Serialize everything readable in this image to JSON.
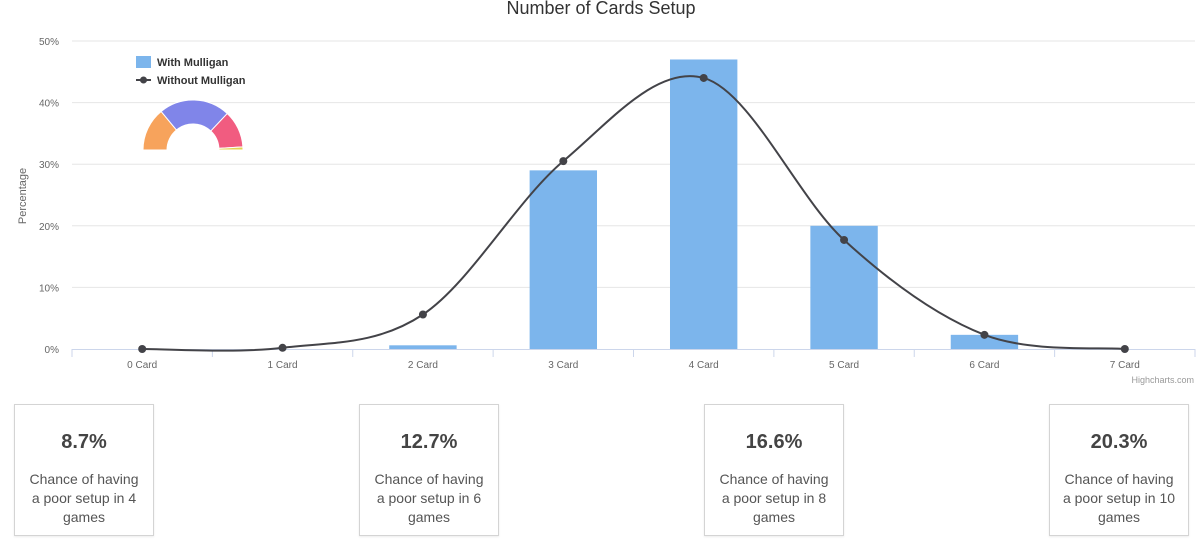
{
  "chart_data": {
    "type": "bar",
    "title": "Number of Cards Setup",
    "ylabel": "Percentage",
    "xlabel": "",
    "ylim": [
      0,
      50
    ],
    "yticks": [
      "0%",
      "10%",
      "20%",
      "30%",
      "40%",
      "50%"
    ],
    "categories": [
      "0 Card",
      "1 Card",
      "2 Card",
      "3 Card",
      "4 Card",
      "5 Card",
      "6 Card",
      "7 Card"
    ],
    "series": [
      {
        "name": "With Mulligan",
        "type": "bar",
        "color": "#7cb5ec",
        "values": [
          0,
          0,
          0.6,
          29,
          47,
          20,
          2.3,
          0
        ]
      },
      {
        "name": "Without Mulligan",
        "type": "spline",
        "color": "#434348",
        "values": [
          0,
          0.2,
          5.6,
          30.5,
          44,
          17.7,
          2.3,
          0
        ]
      }
    ],
    "legend_position": "top-left",
    "grid": true,
    "credits": "Highcharts.com",
    "inset_donut": {
      "type": "semi-donut",
      "colors": [
        "#f7a35c",
        "#8085e9",
        "#f15c80",
        "#e4d354"
      ],
      "values": [
        28,
        46,
        24,
        2
      ]
    }
  },
  "stats": [
    {
      "value": "8.7%",
      "text": "Chance of having a poor setup in 4 games"
    },
    {
      "value": "12.7%",
      "text": "Chance of having a poor setup in 6 games"
    },
    {
      "value": "16.6%",
      "text": "Chance of having a poor setup in 8 games"
    },
    {
      "value": "20.3%",
      "text": "Chance of having a poor setup in 10 games"
    }
  ]
}
